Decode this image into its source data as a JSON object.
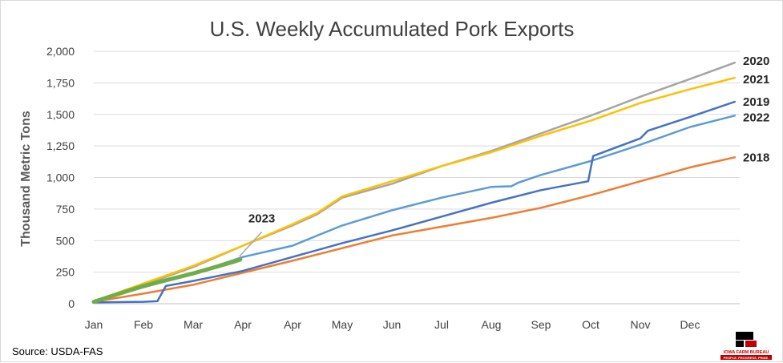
{
  "chart_data": {
    "type": "line",
    "title": "U.S. Weekly Accumulated Pork Exports",
    "ylabel": "Thousand Metric Tons",
    "xlabel": "",
    "ylim": [
      0,
      2000
    ],
    "yticks": [
      0,
      250,
      500,
      750,
      1000,
      1250,
      1500,
      1750,
      2000
    ],
    "ytick_labels": [
      "0",
      "250",
      "500",
      "750",
      "1,000",
      "1,250",
      "1,500",
      "1,750",
      "2,000"
    ],
    "xticks": [
      "Jan",
      "Feb",
      "Mar",
      "Apr",
      "Apr",
      "May",
      "Jun",
      "Jul",
      "Aug",
      "Sep",
      "Oct",
      "Nov",
      "Dec"
    ],
    "xlim": [
      0,
      13.0
    ],
    "grid": true,
    "legend": "end-of-line labels",
    "series": [
      {
        "name": "2018",
        "color": "#ED7D31",
        "points": [
          [
            0,
            15
          ],
          [
            1,
            80
          ],
          [
            2,
            150
          ],
          [
            3,
            245
          ],
          [
            4,
            340
          ],
          [
            5,
            440
          ],
          [
            6,
            540
          ],
          [
            7,
            610
          ],
          [
            8,
            680
          ],
          [
            9,
            760
          ],
          [
            10,
            860
          ],
          [
            11,
            970
          ],
          [
            12,
            1080
          ],
          [
            12.9,
            1160
          ]
        ]
      },
      {
        "name": "2019",
        "color": "#4472C4",
        "points": [
          [
            0,
            10
          ],
          [
            1,
            15
          ],
          [
            1.28,
            20
          ],
          [
            1.45,
            140
          ],
          [
            2,
            180
          ],
          [
            3,
            260
          ],
          [
            4,
            370
          ],
          [
            5,
            480
          ],
          [
            6,
            580
          ],
          [
            7,
            690
          ],
          [
            8,
            800
          ],
          [
            9,
            900
          ],
          [
            9.95,
            970
          ],
          [
            10.05,
            1170
          ],
          [
            11,
            1310
          ],
          [
            11.15,
            1370
          ],
          [
            12,
            1480
          ],
          [
            12.9,
            1600
          ]
        ]
      },
      {
        "name": "2020",
        "color": "#A5A5A5",
        "points": [
          [
            0,
            15
          ],
          [
            1,
            150
          ],
          [
            2,
            290
          ],
          [
            3,
            460
          ],
          [
            4,
            620
          ],
          [
            4.5,
            710
          ],
          [
            5,
            840
          ],
          [
            6,
            950
          ],
          [
            6.5,
            1020
          ],
          [
            7,
            1090
          ],
          [
            8,
            1210
          ],
          [
            9,
            1350
          ],
          [
            10,
            1490
          ],
          [
            11,
            1640
          ],
          [
            12,
            1780
          ],
          [
            12.9,
            1910
          ]
        ]
      },
      {
        "name": "2021",
        "color": "#FFC000",
        "points": [
          [
            0,
            20
          ],
          [
            1,
            160
          ],
          [
            2,
            300
          ],
          [
            3,
            460
          ],
          [
            4,
            630
          ],
          [
            4.5,
            720
          ],
          [
            5,
            850
          ],
          [
            6,
            970
          ],
          [
            7,
            1090
          ],
          [
            8,
            1200
          ],
          [
            9,
            1330
          ],
          [
            10,
            1450
          ],
          [
            11,
            1590
          ],
          [
            12,
            1700
          ],
          [
            12.9,
            1790
          ]
        ]
      },
      {
        "name": "2022",
        "color": "#5B9BD5",
        "points": [
          [
            0,
            15
          ],
          [
            1,
            130
          ],
          [
            2,
            240
          ],
          [
            3,
            370
          ],
          [
            4,
            460
          ],
          [
            4.5,
            540
          ],
          [
            5,
            620
          ],
          [
            6,
            740
          ],
          [
            7,
            840
          ],
          [
            8,
            925
          ],
          [
            8.4,
            930
          ],
          [
            8.55,
            960
          ],
          [
            9,
            1020
          ],
          [
            10,
            1130
          ],
          [
            11,
            1260
          ],
          [
            12,
            1400
          ],
          [
            12.9,
            1490
          ]
        ]
      },
      {
        "name": "2023",
        "color": "#70AD47",
        "points": [
          [
            0,
            15
          ],
          [
            1,
            140
          ],
          [
            2,
            240
          ],
          [
            2.8,
            330
          ],
          [
            2.95,
            350
          ]
        ]
      }
    ],
    "annotation": {
      "text": "2023",
      "x": 2.8,
      "y": 620
    }
  },
  "source": "Source: USDA-FAS",
  "logo": {
    "name": "IOWA FARM BUREAU",
    "tagline": "PEOPLE. PROGRESS. PRIDE."
  }
}
